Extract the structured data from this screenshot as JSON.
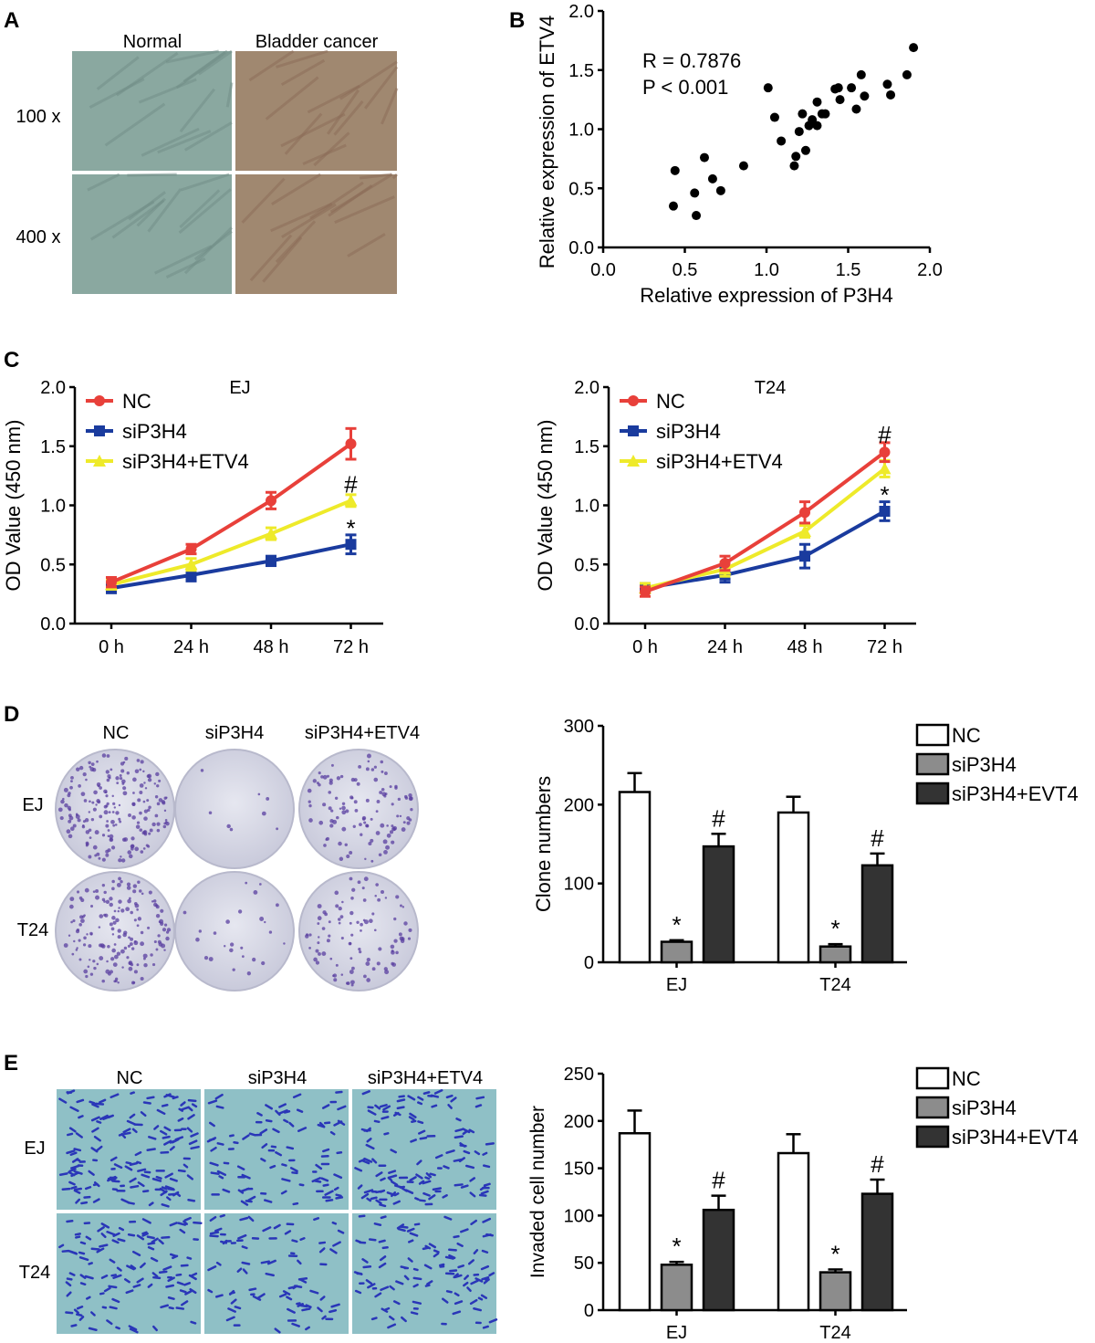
{
  "panels": {
    "A": {
      "letter": "A",
      "columns": [
        "Normal",
        "Bladder cancer"
      ],
      "rows": [
        "100 x",
        "400 x"
      ]
    },
    "D": {
      "letter": "D",
      "columns": [
        "NC",
        "siP3H4",
        "siP3H4+ETV4"
      ],
      "rows": [
        "EJ",
        "T24"
      ]
    },
    "E": {
      "letter": "E",
      "columns": [
        "NC",
        "siP3H4",
        "siP3H4+ETV4"
      ],
      "rows": [
        "EJ",
        "T24"
      ]
    }
  },
  "colors": {
    "nc_line": "#e8403a",
    "siP3H4_line": "#1a3b9e",
    "etv4_line": "#eeea2a",
    "bar_nc": "#ffffff",
    "bar_si": "#8c8c8c",
    "bar_etv": "#333333",
    "he_normal": "#8aa8a0",
    "he_cancer": "#a08870",
    "colony_plate": "#d8d9e8",
    "colony_dot": "#5a3fa0",
    "transwell_bg": "#8fc0c6",
    "transwell_cell": "#2a36b8"
  },
  "chart_data": [
    {
      "panel": "B",
      "letter": "B",
      "type": "scatter",
      "xlabel": "Relative expression of P3H4",
      "ylabel": "Relative expression of ETV4",
      "xlim": [
        0,
        2
      ],
      "ylim": [
        0,
        2
      ],
      "xticks": [
        "0.0",
        "0.5",
        "1.0",
        "1.5",
        "2.0"
      ],
      "yticks": [
        "0.0",
        "0.5",
        "1.0",
        "1.5",
        "2.0"
      ],
      "annotations": [
        "R = 0.7876",
        "P < 0.001"
      ],
      "points": [
        [
          0.44,
          0.65
        ],
        [
          0.43,
          0.35
        ],
        [
          0.56,
          0.46
        ],
        [
          0.62,
          0.76
        ],
        [
          0.57,
          0.27
        ],
        [
          0.67,
          0.58
        ],
        [
          0.72,
          0.48
        ],
        [
          0.86,
          0.69
        ],
        [
          1.01,
          1.35
        ],
        [
          1.05,
          1.1
        ],
        [
          1.09,
          0.9
        ],
        [
          1.17,
          0.69
        ],
        [
          1.18,
          0.77
        ],
        [
          1.2,
          0.98
        ],
        [
          1.22,
          1.13
        ],
        [
          1.24,
          0.82
        ],
        [
          1.26,
          1.03
        ],
        [
          1.28,
          1.08
        ],
        [
          1.31,
          1.03
        ],
        [
          1.31,
          1.23
        ],
        [
          1.34,
          1.13
        ],
        [
          1.36,
          1.13
        ],
        [
          1.42,
          1.34
        ],
        [
          1.44,
          1.35
        ],
        [
          1.45,
          1.25
        ],
        [
          1.52,
          1.35
        ],
        [
          1.55,
          1.17
        ],
        [
          1.58,
          1.46
        ],
        [
          1.6,
          1.28
        ],
        [
          1.74,
          1.38
        ],
        [
          1.76,
          1.29
        ],
        [
          1.86,
          1.46
        ],
        [
          1.9,
          1.69
        ]
      ]
    },
    {
      "panel": "C",
      "letter": "C",
      "type": "line",
      "title": "EJ",
      "ylabel": "OD Value (450 nm)",
      "categories": [
        "0 h",
        "24 h",
        "48 h",
        "72 h"
      ],
      "ylim": [
        0,
        2
      ],
      "yticks": [
        "0.0",
        "0.5",
        "1.0",
        "1.5",
        "2.0"
      ],
      "series": [
        {
          "name": "NC",
          "values": [
            0.35,
            0.63,
            1.04,
            1.52
          ],
          "errors": [
            0.04,
            0.04,
            0.07,
            0.13
          ]
        },
        {
          "name": "siP3H4",
          "values": [
            0.3,
            0.41,
            0.53,
            0.67
          ],
          "errors": [
            0.04,
            0.05,
            0.04,
            0.08
          ]
        },
        {
          "name": "siP3H4+ETV4",
          "values": [
            0.33,
            0.5,
            0.76,
            1.04
          ],
          "errors": [
            0.04,
            0.05,
            0.05,
            0.05
          ]
        }
      ],
      "markers": [
        {
          "text": "#",
          "cat": 3,
          "y": 1.17
        },
        {
          "text": "*",
          "cat": 3,
          "y": 0.8
        }
      ]
    },
    {
      "panel": "C2",
      "type": "line",
      "title": "T24",
      "ylabel": "OD Value (450 nm)",
      "categories": [
        "0 h",
        "24 h",
        "48 h",
        "72 h"
      ],
      "ylim": [
        0,
        2
      ],
      "yticks": [
        "0.0",
        "0.5",
        "1.0",
        "1.5",
        "2.0"
      ],
      "series": [
        {
          "name": "NC",
          "values": [
            0.27,
            0.51,
            0.94,
            1.45
          ],
          "errors": [
            0.04,
            0.06,
            0.09,
            0.08
          ]
        },
        {
          "name": "siP3H4",
          "values": [
            0.3,
            0.41,
            0.57,
            0.95
          ],
          "errors": [
            0.04,
            0.06,
            0.1,
            0.08
          ]
        },
        {
          "name": "siP3H4+ETV4",
          "values": [
            0.3,
            0.46,
            0.78,
            1.31
          ],
          "errors": [
            0.04,
            0.06,
            0.05,
            0.07
          ]
        }
      ],
      "markers": [
        {
          "text": "#",
          "cat": 3,
          "y": 1.59
        },
        {
          "text": "*",
          "cat": 3,
          "y": 1.08
        }
      ]
    },
    {
      "panel": "D",
      "type": "bar",
      "ylabel": "Clone numbers",
      "categories": [
        "EJ",
        "T24"
      ],
      "ylim": [
        0,
        300
      ],
      "yticks": [
        "0",
        "100",
        "200",
        "300"
      ],
      "series": [
        {
          "name": "NC",
          "values": [
            216,
            190
          ],
          "errors": [
            24,
            20
          ]
        },
        {
          "name": "siP3H4",
          "values": [
            26,
            20
          ],
          "errors": [
            2,
            3
          ]
        },
        {
          "name": "siP3H4+EVT4",
          "values": [
            147,
            123
          ],
          "errors": [
            16,
            15
          ]
        }
      ],
      "markers": [
        {
          "text": "*",
          "group": 0,
          "series": 1
        },
        {
          "text": "#",
          "group": 0,
          "series": 2
        },
        {
          "text": "*",
          "group": 1,
          "series": 1
        },
        {
          "text": "#",
          "group": 1,
          "series": 2
        }
      ]
    },
    {
      "panel": "E",
      "type": "bar",
      "ylabel": "Invaded cell number",
      "categories": [
        "EJ",
        "T24"
      ],
      "ylim": [
        0,
        250
      ],
      "yticks": [
        "0",
        "50",
        "100",
        "150",
        "200",
        "250"
      ],
      "series": [
        {
          "name": "NC",
          "values": [
            187,
            166
          ],
          "errors": [
            24,
            20
          ]
        },
        {
          "name": "siP3H4",
          "values": [
            48,
            40
          ],
          "errors": [
            3,
            3
          ]
        },
        {
          "name": "siP3H4+EVT4",
          "values": [
            106,
            123
          ],
          "errors": [
            15,
            15
          ]
        }
      ],
      "markers": [
        {
          "text": "*",
          "group": 0,
          "series": 1
        },
        {
          "text": "#",
          "group": 0,
          "series": 2
        },
        {
          "text": "*",
          "group": 1,
          "series": 1
        },
        {
          "text": "#",
          "group": 1,
          "series": 2
        }
      ]
    }
  ]
}
